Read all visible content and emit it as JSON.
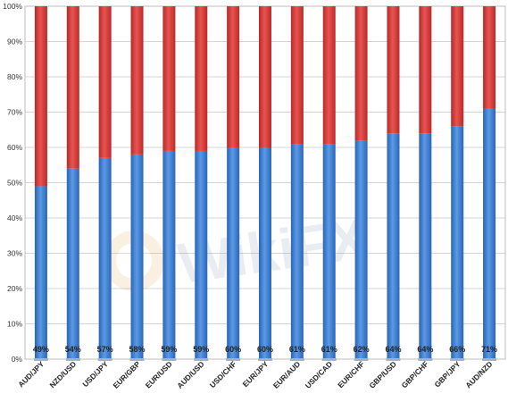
{
  "chart_data": {
    "type": "bar",
    "stacked": true,
    "percent": true,
    "categories": [
      "AUD/JPY",
      "NZD/USD",
      "USD/JPY",
      "EUR/GBP",
      "EUR/USD",
      "AUD/USD",
      "USD/CHF",
      "EUR/JPY",
      "EUR/AUD",
      "USD/CAD",
      "EUR/CHF",
      "GBP/USD",
      "GBP/CHF",
      "GBP/JPY",
      "AUD/NZD"
    ],
    "series": [
      {
        "values": [
          49,
          54,
          57,
          58,
          59,
          59,
          60,
          60,
          61,
          61,
          62,
          64,
          64,
          66,
          71
        ],
        "color": "#3c7fd0"
      },
      {
        "values": [
          51,
          46,
          43,
          42,
          41,
          41,
          40,
          40,
          39,
          39,
          38,
          36,
          36,
          34,
          29
        ],
        "color": "#d33a36"
      }
    ],
    "data_labels": [
      "49%",
      "54%",
      "57%",
      "58%",
      "59%",
      "59%",
      "60%",
      "60%",
      "61%",
      "61%",
      "62%",
      "64%",
      "64%",
      "66%",
      "71%"
    ],
    "y_ticks": [
      "0%",
      "10%",
      "20%",
      "30%",
      "40%",
      "50%",
      "60%",
      "70%",
      "80%",
      "90%",
      "100%"
    ],
    "ylim": [
      0,
      100
    ],
    "grid": true,
    "legend": "none"
  },
  "watermark": "WikiFX"
}
